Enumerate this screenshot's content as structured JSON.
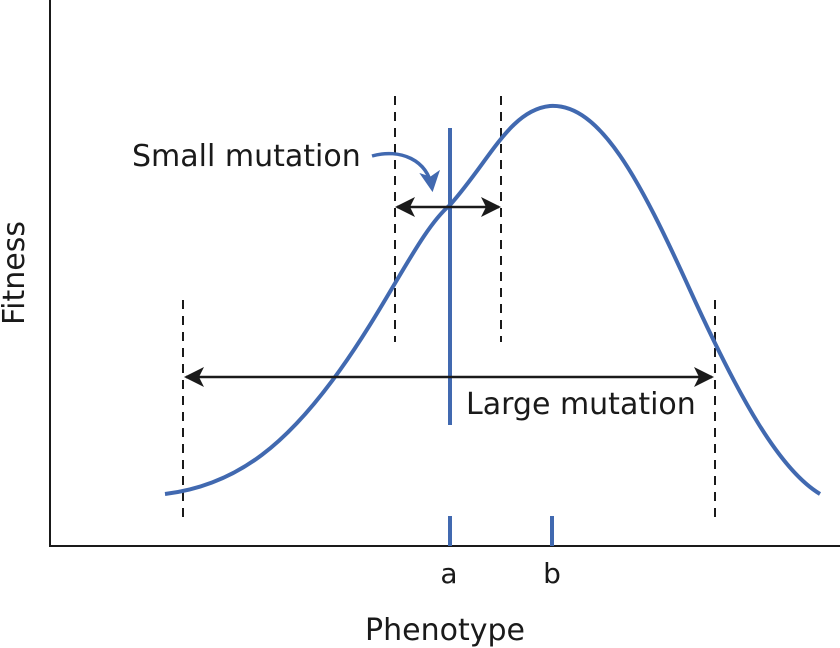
{
  "colors": {
    "curve": "#4169b0",
    "ink": "#1a1a1a",
    "dash": "#1a1a1a"
  },
  "labels": {
    "y_axis": "Fitness",
    "x_axis": "Phenotype",
    "small_mutation": "Small mutation",
    "large_mutation": "Large mutation",
    "marker_a": "a",
    "marker_b": "b"
  }
}
